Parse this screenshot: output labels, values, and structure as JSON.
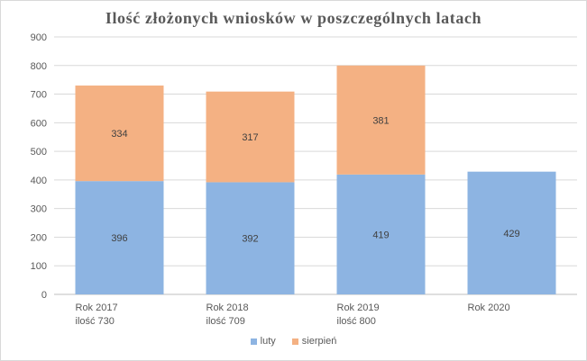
{
  "chart_data": {
    "type": "bar",
    "stacked": true,
    "title": "Ilość złożonych wniosków w poszczególnych latach",
    "categories": [
      [
        "Rok 2017",
        "ilość 730"
      ],
      [
        "Rok 2018",
        "ilość 709"
      ],
      [
        "Rok 2019",
        "ilość 800"
      ],
      [
        "Rok 2020"
      ]
    ],
    "series": [
      {
        "name": "luty",
        "color": "#8db4e2",
        "values": [
          396,
          392,
          419,
          429
        ]
      },
      {
        "name": "sierpień",
        "color": "#f4b183",
        "values": [
          334,
          317,
          381,
          null
        ]
      }
    ],
    "ylim": [
      0,
      900
    ],
    "yticks": [
      0,
      100,
      200,
      300,
      400,
      500,
      600,
      700,
      800,
      900
    ],
    "grid": true,
    "legend_position": "bottom"
  }
}
